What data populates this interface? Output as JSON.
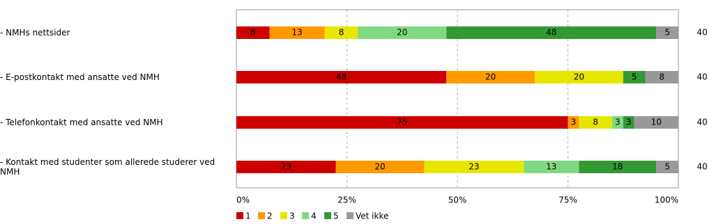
{
  "chart_data": {
    "type": "stacked-bar-horizontal",
    "categories": [
      "- NMHs nettsider",
      "- E-postkontakt med ansatte ved NMH",
      "- Telefonkontakt med ansatte ved NMH",
      "- Kontakt med studenter som allerede studerer ved NMH"
    ],
    "series": [
      {
        "name": "1",
        "color": "#cc0000",
        "values": [
          7.5,
          47.5,
          75,
          22.5
        ],
        "value_labels": [
          "8",
          "48",
          "75",
          "23"
        ]
      },
      {
        "name": "2",
        "color": "#ff9900",
        "values": [
          12.5,
          20,
          2.5,
          20
        ],
        "value_labels": [
          "13",
          "20",
          "3",
          "20"
        ]
      },
      {
        "name": "3",
        "color": "#e6e600",
        "values": [
          7.5,
          20,
          7.5,
          22.5
        ],
        "value_labels": [
          "8",
          "20",
          "8",
          "23"
        ]
      },
      {
        "name": "4",
        "color": "#80d980",
        "values": [
          20,
          0,
          2.5,
          12.5
        ],
        "value_labels": [
          "20",
          null,
          "3",
          "13"
        ]
      },
      {
        "name": "5",
        "color": "#339933",
        "values": [
          47.5,
          5,
          2.5,
          17.5
        ],
        "value_labels": [
          "48",
          "5",
          "3",
          "18"
        ]
      },
      {
        "name": "Vet ikke",
        "color": "#999999",
        "values": [
          5,
          7.5,
          10,
          5
        ],
        "value_labels": [
          "5",
          "8",
          "10",
          "5"
        ]
      }
    ],
    "n": [
      40,
      40,
      40,
      40
    ],
    "xlim": [
      0,
      100
    ],
    "xticks": [
      {
        "value": 0,
        "label": "0%"
      },
      {
        "value": 25,
        "label": "25%"
      },
      {
        "value": 50,
        "label": "50%"
      },
      {
        "value": 75,
        "label": "75%"
      },
      {
        "value": 100,
        "label": "100%"
      }
    ],
    "grid": true,
    "legend": "bottom"
  }
}
